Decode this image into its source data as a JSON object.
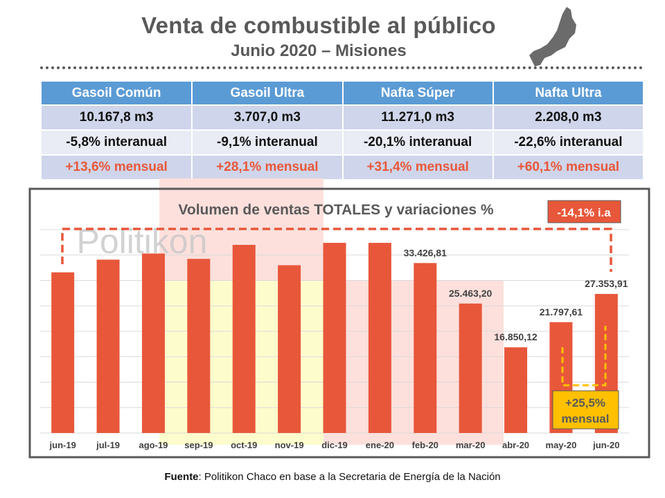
{
  "header": {
    "title": "Venta de combustible al público",
    "subtitle": "Junio 2020 – Misiones"
  },
  "table": {
    "columns": [
      "Gasoil Común",
      "Gasoil Ultra",
      "Nafta Súper",
      "Nafta Ultra"
    ],
    "volumes": [
      "10.167,8 m3",
      "3.707,0 m3",
      "11.271,0 m3",
      "2.208,0 m3"
    ],
    "interannual": [
      "-5,8% interanual",
      "-9,1% interanual",
      "-20,1% interanual",
      "-22,6% interanual"
    ],
    "monthly": [
      "+13,6% mensual",
      "+28,1% mensual",
      "+31,4% mensual",
      "+60,1% mensual"
    ]
  },
  "chart_data": {
    "type": "bar",
    "title": "Volumen de ventas TOTALES y variaciones %",
    "watermark": "Politikon",
    "categories": [
      "jun-19",
      "jul-19",
      "ago-19",
      "sep-19",
      "oct-19",
      "nov-19",
      "dic-19",
      "ene-20",
      "feb-20",
      "mar-20",
      "abr-20",
      "may-20",
      "jun-20"
    ],
    "values": [
      31600,
      34100,
      35300,
      34250,
      37000,
      33000,
      37400,
      37400,
      33426.81,
      25463.2,
      16850.12,
      21797.61,
      27353.91
    ],
    "data_labels": [
      "",
      "",
      "",
      "",
      "",
      "",
      "",
      "",
      "33.426,81",
      "25.463,20",
      "16.850,12",
      "21.797,61",
      "27.353,91"
    ],
    "ylim": [
      0,
      40000
    ],
    "grid_step": 5000,
    "annotations": {
      "interannual": "-14,1% i.a",
      "monthly_1": "+25,5%",
      "monthly_2": "mensual"
    },
    "bar_color": "#e8573a"
  },
  "footer": {
    "source_label": "Fuente",
    "source_text": ": Politikon Chaco en base a la Secretaria de Energía de la Nación"
  }
}
